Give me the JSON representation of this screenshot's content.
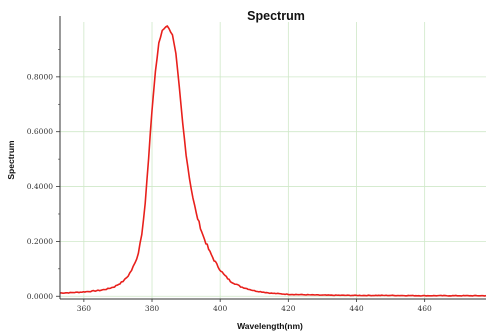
{
  "chart_data": {
    "type": "line",
    "title": "Spectrum",
    "xlabel": "Wavelength(nm)",
    "ylabel": "Spectrum",
    "xlim": [
      353,
      478
    ],
    "ylim": [
      -0.01,
      1.0
    ],
    "x_ticks": [
      360,
      380,
      400,
      420,
      440,
      460
    ],
    "x_tick_labels": [
      "360",
      "380",
      "400",
      "420",
      "440",
      "460"
    ],
    "y_ticks": [
      0,
      0.2,
      0.4,
      0.6,
      0.8
    ],
    "y_tick_labels": [
      "0.0000",
      "0.2000",
      "0.4000",
      "0.6000",
      "0.8000"
    ],
    "grid": true,
    "grid_color": "#cfe8c8",
    "line_color": "#e8201c",
    "series": [
      {
        "x": [
          353,
          356,
          359,
          362,
          365,
          367,
          369,
          371,
          372,
          373,
          374,
          375,
          376,
          377,
          378,
          379,
          380,
          381,
          382,
          383,
          384,
          385,
          386,
          387,
          388,
          389,
          390,
          391,
          392,
          393,
          395,
          397,
          399,
          401,
          403,
          406,
          410,
          415,
          420,
          430,
          440,
          450,
          460,
          470,
          478
        ],
        "y": [
          0.012,
          0.013,
          0.015,
          0.018,
          0.022,
          0.027,
          0.035,
          0.05,
          0.06,
          0.075,
          0.095,
          0.12,
          0.16,
          0.23,
          0.34,
          0.5,
          0.68,
          0.82,
          0.92,
          0.97,
          0.985,
          0.98,
          0.95,
          0.88,
          0.76,
          0.63,
          0.52,
          0.43,
          0.36,
          0.3,
          0.22,
          0.16,
          0.115,
          0.08,
          0.055,
          0.035,
          0.02,
          0.011,
          0.007,
          0.004,
          0.003,
          0.003,
          0.002,
          0.002,
          0.002
        ]
      }
    ]
  }
}
